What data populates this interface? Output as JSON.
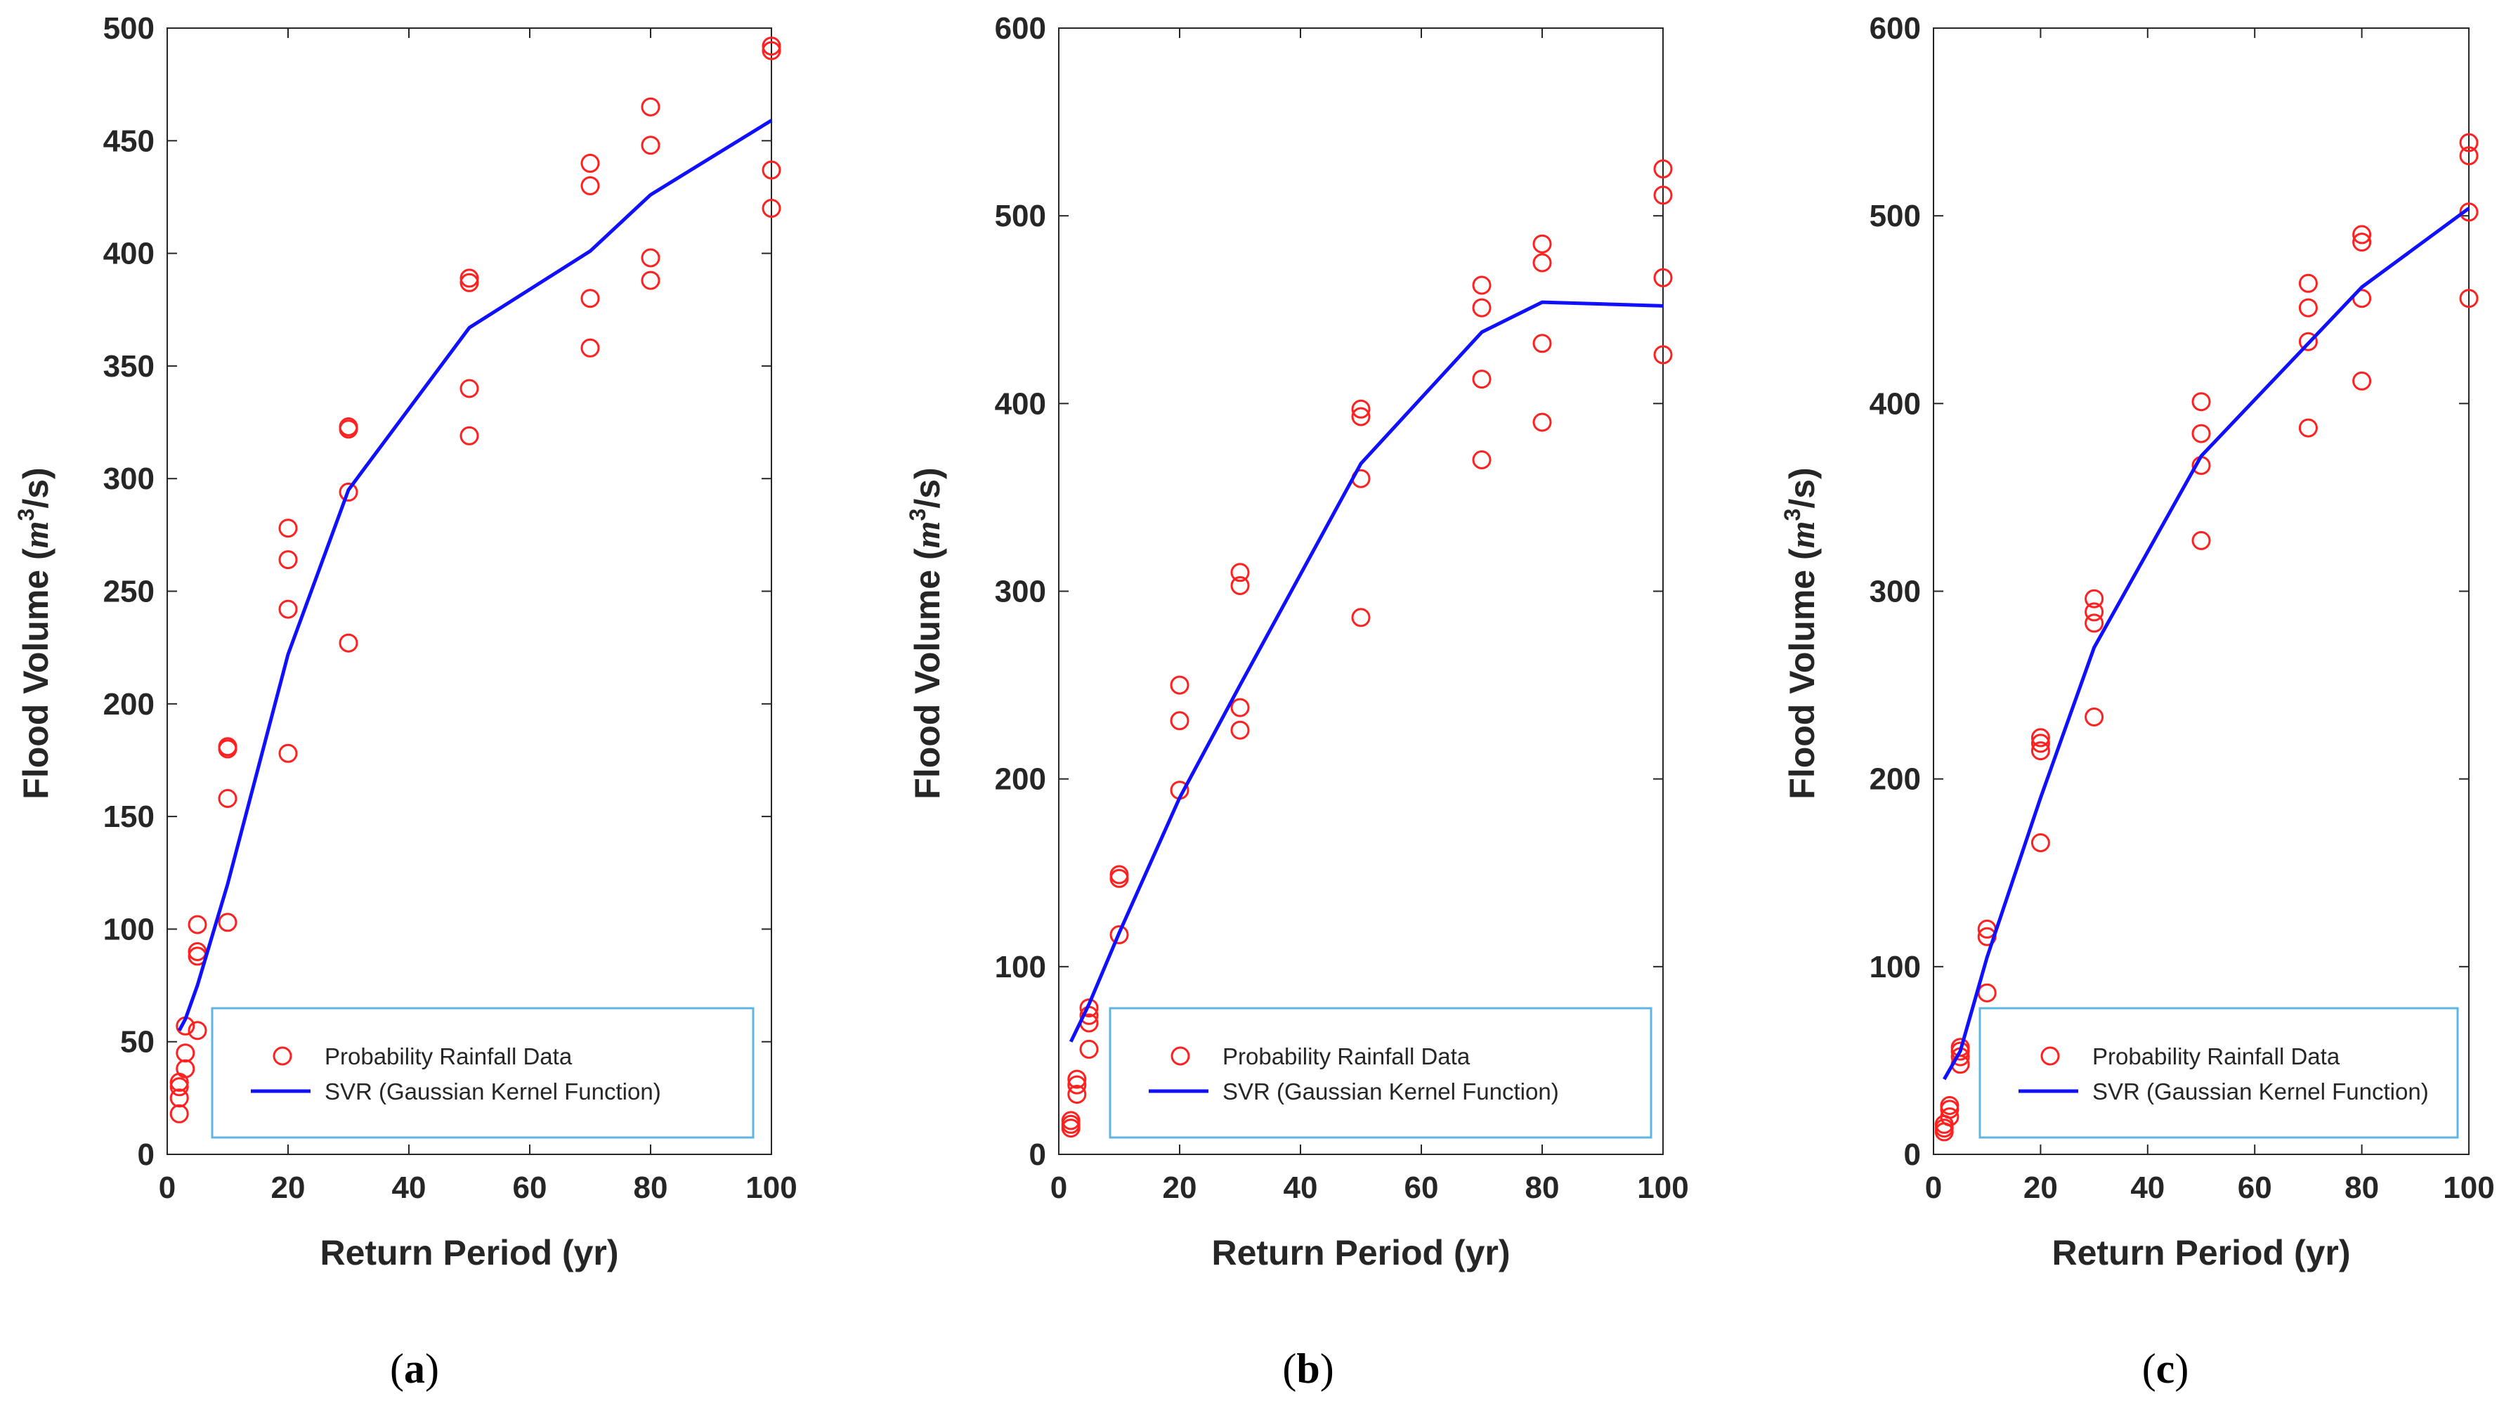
{
  "figure": {
    "panels": [
      "(a)",
      "(b)",
      "(c)"
    ],
    "panel_letters": [
      "a",
      "b",
      "c"
    ]
  },
  "colors": {
    "points": "#ff2020",
    "line": "#1010ff",
    "legend_border": "#5fb4e0",
    "axis": "#262626"
  },
  "chart_data": [
    {
      "type": "scatter",
      "panel_label": "(a)",
      "xlabel": "Return Period (yr)",
      "ylabel": "Flood Volume (m³/s)",
      "ylabel_main": "Flood Volume (",
      "ylabel_unit_base": "m",
      "ylabel_unit_exp": "3",
      "ylabel_unit_rest": "/s)",
      "xlim": [
        0,
        100
      ],
      "ylim": [
        0,
        500
      ],
      "xticks": [
        0,
        20,
        40,
        60,
        80,
        100
      ],
      "yticks": [
        0,
        50,
        100,
        150,
        200,
        250,
        300,
        350,
        400,
        450,
        500
      ],
      "legend": {
        "location": "lower-right",
        "entries": [
          "Probability Rainfall Data",
          "SVR (Gaussian Kernel Function)"
        ]
      },
      "series": [
        {
          "name": "Probability Rainfall Data",
          "kind": "markers",
          "points": [
            [
              2,
              18
            ],
            [
              2,
              25
            ],
            [
              2,
              30
            ],
            [
              2,
              32
            ],
            [
              3,
              38
            ],
            [
              3,
              45
            ],
            [
              3,
              57
            ],
            [
              5,
              55
            ],
            [
              5,
              88
            ],
            [
              5,
              90
            ],
            [
              5,
              102
            ],
            [
              10,
              103
            ],
            [
              10,
              158
            ],
            [
              10,
              180
            ],
            [
              10,
              181
            ],
            [
              20,
              178
            ],
            [
              20,
              242
            ],
            [
              20,
              264
            ],
            [
              20,
              278
            ],
            [
              30,
              227
            ],
            [
              30,
              294
            ],
            [
              30,
              322
            ],
            [
              30,
              323
            ],
            [
              50,
              319
            ],
            [
              50,
              340
            ],
            [
              50,
              387
            ],
            [
              50,
              389
            ],
            [
              70,
              358
            ],
            [
              70,
              380
            ],
            [
              70,
              430
            ],
            [
              70,
              440
            ],
            [
              80,
              388
            ],
            [
              80,
              398
            ],
            [
              80,
              448
            ],
            [
              80,
              465
            ],
            [
              100,
              420
            ],
            [
              100,
              437
            ],
            [
              100,
              490
            ],
            [
              100,
              492
            ]
          ]
        },
        {
          "name": "SVR (Gaussian Kernel Function)",
          "kind": "line",
          "points": [
            [
              2,
              55
            ],
            [
              3,
              60
            ],
            [
              5,
              75
            ],
            [
              10,
              120
            ],
            [
              20,
              222
            ],
            [
              30,
              295
            ],
            [
              50,
              367
            ],
            [
              70,
              401
            ],
            [
              80,
              426
            ],
            [
              100,
              459
            ]
          ]
        }
      ]
    },
    {
      "type": "scatter",
      "panel_label": "(b)",
      "xlabel": "Return Period (yr)",
      "ylabel": "Flood Volume (m³/s)",
      "ylabel_main": "Flood Volume (",
      "ylabel_unit_base": "m",
      "ylabel_unit_exp": "3",
      "ylabel_unit_rest": "/s)",
      "xlim": [
        0,
        100
      ],
      "ylim": [
        0,
        600
      ],
      "xticks": [
        0,
        20,
        40,
        60,
        80,
        100
      ],
      "yticks": [
        0,
        100,
        200,
        300,
        400,
        500,
        600
      ],
      "legend": {
        "location": "lower-right",
        "entries": [
          "Probability Rainfall Data",
          "SVR (Gaussian Kernel Function)"
        ]
      },
      "series": [
        {
          "name": "Probability Rainfall Data",
          "kind": "markers",
          "points": [
            [
              2,
              14
            ],
            [
              2,
              16
            ],
            [
              2,
              18
            ],
            [
              3,
              32
            ],
            [
              3,
              37
            ],
            [
              3,
              40
            ],
            [
              5,
              56
            ],
            [
              5,
              70
            ],
            [
              5,
              74
            ],
            [
              5,
              78
            ],
            [
              10,
              117
            ],
            [
              10,
              147
            ],
            [
              10,
              149
            ],
            [
              20,
              194
            ],
            [
              20,
              231
            ],
            [
              20,
              250
            ],
            [
              30,
              226
            ],
            [
              30,
              238
            ],
            [
              30,
              303
            ],
            [
              30,
              310
            ],
            [
              50,
              286
            ],
            [
              50,
              360
            ],
            [
              50,
              393
            ],
            [
              50,
              397
            ],
            [
              70,
              370
            ],
            [
              70,
              413
            ],
            [
              70,
              451
            ],
            [
              70,
              463
            ],
            [
              80,
              390
            ],
            [
              80,
              432
            ],
            [
              80,
              475
            ],
            [
              80,
              485
            ],
            [
              100,
              426
            ],
            [
              100,
              467
            ],
            [
              100,
              511
            ],
            [
              100,
              525
            ]
          ]
        },
        {
          "name": "SVR (Gaussian Kernel Function)",
          "kind": "line",
          "points": [
            [
              2,
              60
            ],
            [
              5,
              80
            ],
            [
              10,
              118
            ],
            [
              20,
              190
            ],
            [
              30,
              250
            ],
            [
              50,
              368
            ],
            [
              70,
              438
            ],
            [
              80,
              454
            ],
            [
              100,
              452
            ]
          ]
        }
      ]
    },
    {
      "type": "scatter",
      "panel_label": "(c)",
      "xlabel": "Return Period (yr)",
      "ylabel": "Flood Volume (m³/s)",
      "ylabel_main": "Flood Volume (",
      "ylabel_unit_base": "m",
      "ylabel_unit_exp": "3",
      "ylabel_unit_rest": "/s)",
      "xlim": [
        0,
        100
      ],
      "ylim": [
        0,
        600
      ],
      "xticks": [
        0,
        20,
        40,
        60,
        80,
        100
      ],
      "yticks": [
        0,
        100,
        200,
        300,
        400,
        500,
        600
      ],
      "legend": {
        "location": "lower-right",
        "entries": [
          "Probability Rainfall Data",
          "SVR (Gaussian Kernel Function)"
        ]
      },
      "series": [
        {
          "name": "Probability Rainfall Data",
          "kind": "markers",
          "points": [
            [
              2,
              12
            ],
            [
              2,
              14
            ],
            [
              2,
              16
            ],
            [
              3,
              20
            ],
            [
              3,
              24
            ],
            [
              3,
              26
            ],
            [
              5,
              48
            ],
            [
              5,
              52
            ],
            [
              5,
              55
            ],
            [
              5,
              57
            ],
            [
              10,
              86
            ],
            [
              10,
              116
            ],
            [
              10,
              120
            ],
            [
              20,
              166
            ],
            [
              20,
              215
            ],
            [
              20,
              219
            ],
            [
              20,
              222
            ],
            [
              30,
              233
            ],
            [
              30,
              283
            ],
            [
              30,
              289
            ],
            [
              30,
              296
            ],
            [
              50,
              327
            ],
            [
              50,
              367
            ],
            [
              50,
              384
            ],
            [
              50,
              401
            ],
            [
              70,
              387
            ],
            [
              70,
              433
            ],
            [
              70,
              451
            ],
            [
              70,
              464
            ],
            [
              80,
              412
            ],
            [
              80,
              456
            ],
            [
              80,
              486
            ],
            [
              80,
              490
            ],
            [
              100,
              456
            ],
            [
              100,
              502
            ],
            [
              100,
              532
            ],
            [
              100,
              539
            ]
          ]
        },
        {
          "name": "SVR (Gaussian Kernel Function)",
          "kind": "line",
          "points": [
            [
              2,
              40
            ],
            [
              5,
              55
            ],
            [
              10,
              105
            ],
            [
              20,
              190
            ],
            [
              30,
              270
            ],
            [
              50,
              372
            ],
            [
              70,
              432
            ],
            [
              80,
              462
            ],
            [
              100,
              504
            ]
          ]
        }
      ]
    }
  ]
}
